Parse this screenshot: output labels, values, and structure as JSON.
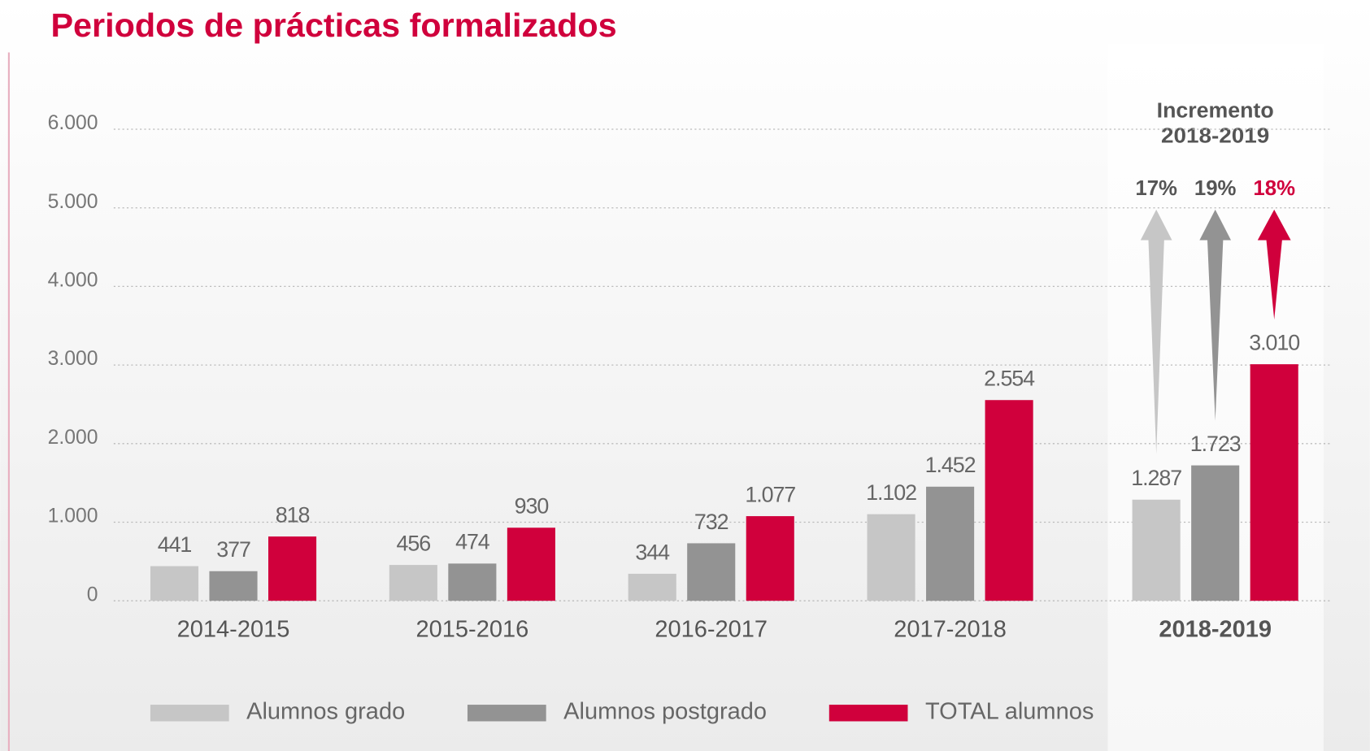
{
  "chart_data": {
    "type": "bar",
    "title": "Periodos de prácticas formalizados",
    "annotation_title": [
      "Incremento",
      "2018-2019"
    ],
    "categories": [
      "2014-2015",
      "2015-2016",
      "2016-2017",
      "2017-2018",
      "2018-2019"
    ],
    "series": [
      {
        "name": "Alumnos grado",
        "color": "#c6c6c6",
        "values": [
          441,
          456,
          344,
          1102,
          1287
        ],
        "value_labels": [
          "441",
          "456",
          "344",
          "1.102",
          "1.287"
        ]
      },
      {
        "name": "Alumnos postgrado",
        "color": "#939393",
        "values": [
          377,
          474,
          732,
          1452,
          1723
        ],
        "value_labels": [
          "377",
          "474",
          "732",
          "1.452",
          "1.723"
        ]
      },
      {
        "name": "TOTAL alumnos",
        "color": "#d0003c",
        "values": [
          818,
          930,
          1077,
          2554,
          3010
        ],
        "value_labels": [
          "818",
          "930",
          "1.077",
          "2.554",
          "3.010"
        ]
      }
    ],
    "increments": [
      {
        "value": 17,
        "label": "17%"
      },
      {
        "value": 19,
        "label": "19%"
      },
      {
        "value": 18,
        "label": "18%"
      }
    ],
    "ylim": [
      0,
      6000
    ],
    "yticks": [
      0,
      {
        "value": 1000,
        "label": "1.000"
      },
      {
        "value": 2000,
        "label": "2.000"
      },
      {
        "value": 3000,
        "label": "3.000"
      },
      {
        "value": 4000,
        "label": "4.000"
      },
      {
        "value": 5000,
        "label": "5.000"
      },
      {
        "value": 6000,
        "label": "6.000"
      }
    ],
    "grid": true
  }
}
